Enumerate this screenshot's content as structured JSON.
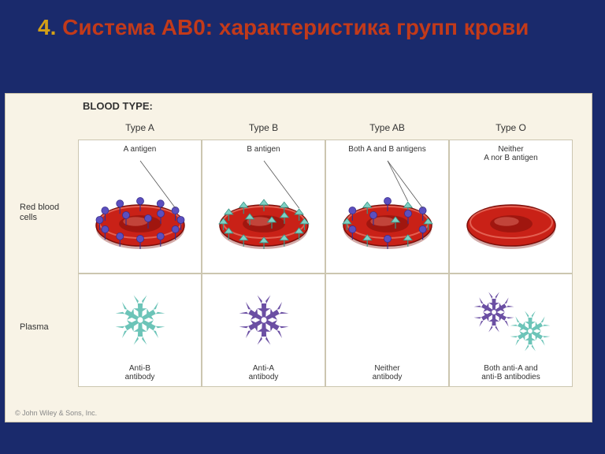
{
  "slide": {
    "title_number": "4. ",
    "title_text": "Система АВ0: характеристика групп крови"
  },
  "diagram": {
    "heading": "BLOOD TYPE:",
    "row_labels": {
      "rbc": "Red blood\ncells",
      "plasma": "Plasma"
    },
    "columns": [
      {
        "header": "Type A",
        "antigen_label": "A antigen",
        "antibody_label": "Anti-B\nantibody",
        "antigens": "A",
        "antibodies": "antiB"
      },
      {
        "header": "Type B",
        "antigen_label": "B antigen",
        "antibody_label": "Anti-A\nantibody",
        "antigens": "B",
        "antibodies": "antiA"
      },
      {
        "header": "Type AB",
        "antigen_label": "Both A and B antigens",
        "antibody_label": "Neither\nantibody",
        "antigens": "AB",
        "antibodies": "none"
      },
      {
        "header": "Type O",
        "antigen_label": "Neither\nA nor B antigen",
        "antibody_label": "Both anti-A and\nanti-B antibodies",
        "antigens": "none",
        "antibodies": "both"
      }
    ],
    "copyright": "© John Wiley & Sons, Inc."
  },
  "style": {
    "background": "#1a2a6c",
    "panel_bg": "#f8f3e6",
    "cell_bg": "#ffffff",
    "rbc_fill": "#c92117",
    "rbc_stroke": "#7d0e09",
    "rbc_highlight": "#f58a7a",
    "antigenA_fill": "#5b4fbf",
    "antigenA_stroke": "#3a2f8d",
    "antigenB_fill": "#7fd1c4",
    "antigenB_stroke": "#3a9486",
    "antibodyA_fill": "#6b4fa3",
    "antibodyB_fill": "#6cc4b8",
    "title_num_color": "#d4a017",
    "title_text_color": "#c23a1a"
  }
}
